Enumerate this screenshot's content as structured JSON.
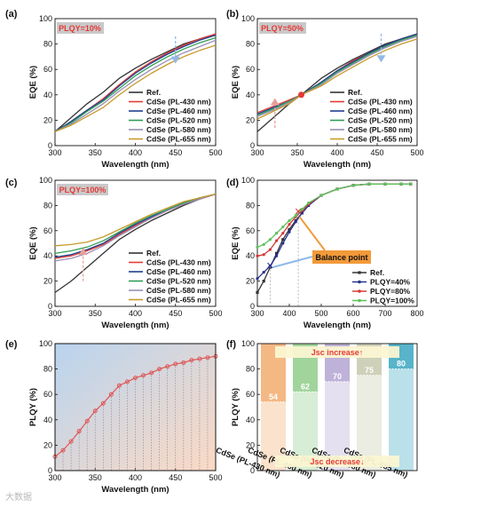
{
  "watermark": "大数据",
  "colors": {
    "ref": "#333333",
    "pl430": "#e53935",
    "pl460": "#1e3f8f",
    "pl520": "#2e9e55",
    "pl580": "#9a8fb5",
    "pl655": "#c79a2a",
    "plqy40": "#27318f",
    "plqy80": "#d43a3a",
    "plqy100": "#5cc25c",
    "tag_bg": "#c9c9c9",
    "tag_text": "#e53935"
  },
  "chart_data": [
    {
      "panel": "(a)",
      "type": "line",
      "tag": "PLQY=10%",
      "xlabel": "Wavelength (nm)",
      "ylabel": "EQE (%)",
      "xlim": [
        300,
        500
      ],
      "ylim": [
        0,
        100
      ],
      "xticks": [
        300,
        350,
        400,
        450,
        500
      ],
      "yticks": [
        0,
        20,
        40,
        60,
        80,
        100
      ],
      "legend_position": "bottom-right",
      "series": [
        {
          "name": "Ref.",
          "color": "ref",
          "x": [
            300,
            320,
            340,
            360,
            380,
            400,
            420,
            440,
            460,
            480,
            500
          ],
          "y": [
            11,
            22,
            33,
            42,
            53,
            61,
            68,
            74,
            80,
            84,
            88
          ]
        },
        {
          "name": "CdSe (PL-430 nm)",
          "color": "pl430",
          "x": [
            300,
            320,
            340,
            360,
            380,
            400,
            420,
            440,
            460,
            480,
            500
          ],
          "y": [
            11,
            19,
            28,
            37,
            48,
            58,
            66,
            73,
            79,
            84,
            88
          ]
        },
        {
          "name": "CdSe (PL-460 nm)",
          "color": "pl460",
          "x": [
            300,
            320,
            340,
            360,
            380,
            400,
            420,
            440,
            460,
            480,
            500
          ],
          "y": [
            11,
            19,
            28,
            36,
            47,
            57,
            65,
            72,
            78,
            83,
            87
          ]
        },
        {
          "name": "CdSe (PL-520 nm)",
          "color": "pl520",
          "x": [
            300,
            320,
            340,
            360,
            380,
            400,
            420,
            440,
            460,
            480,
            500
          ],
          "y": [
            11,
            18,
            27,
            35,
            45,
            55,
            63,
            70,
            76,
            81,
            85
          ]
        },
        {
          "name": "CdSe (PL-580 nm)",
          "color": "pl580",
          "x": [
            300,
            320,
            340,
            360,
            380,
            400,
            420,
            440,
            460,
            480,
            500
          ],
          "y": [
            11,
            17,
            25,
            33,
            43,
            52,
            60,
            67,
            73,
            78,
            83
          ]
        },
        {
          "name": "CdSe (PL-655 nm)",
          "color": "pl655",
          "x": [
            300,
            320,
            340,
            360,
            380,
            400,
            420,
            440,
            460,
            480,
            500
          ],
          "y": [
            11,
            16,
            23,
            30,
            40,
            49,
            57,
            64,
            70,
            75,
            79
          ]
        }
      ],
      "arrows": [
        {
          "x": 450,
          "y1": 86,
          "y2": 66,
          "color": "#8fb9e8"
        }
      ]
    },
    {
      "panel": "(b)",
      "type": "line",
      "tag": "PLQY=50%",
      "xlabel": "Wavelength (nm)",
      "ylabel": "EQE (%)",
      "xlim": [
        300,
        500
      ],
      "ylim": [
        0,
        100
      ],
      "xticks": [
        300,
        350,
        400,
        450,
        500
      ],
      "yticks": [
        0,
        20,
        40,
        60,
        80,
        100
      ],
      "legend_position": "bottom-right",
      "series": [
        {
          "name": "Ref.",
          "color": "ref",
          "x": [
            300,
            320,
            340,
            355,
            380,
            400,
            420,
            440,
            460,
            480,
            500
          ],
          "y": [
            11,
            22,
            33,
            40,
            53,
            61,
            68,
            74,
            80,
            84,
            88
          ]
        },
        {
          "name": "CdSe (PL-430 nm)",
          "color": "pl430",
          "x": [
            300,
            320,
            340,
            355,
            380,
            400,
            420,
            440,
            460,
            480,
            500
          ],
          "y": [
            26,
            31,
            36,
            40,
            50,
            59,
            67,
            73,
            79,
            84,
            88
          ]
        },
        {
          "name": "CdSe (PL-460 nm)",
          "color": "pl460",
          "x": [
            300,
            320,
            340,
            355,
            380,
            400,
            420,
            440,
            460,
            480,
            500
          ],
          "y": [
            25,
            30,
            35,
            40,
            50,
            59,
            66,
            73,
            79,
            84,
            88
          ]
        },
        {
          "name": "CdSe (PL-520 nm)",
          "color": "pl520",
          "x": [
            300,
            320,
            340,
            355,
            380,
            400,
            420,
            440,
            460,
            480,
            500
          ],
          "y": [
            24,
            29,
            35,
            40,
            49,
            58,
            65,
            72,
            78,
            83,
            87
          ]
        },
        {
          "name": "CdSe (PL-580 nm)",
          "color": "pl580",
          "x": [
            300,
            320,
            340,
            355,
            380,
            400,
            420,
            440,
            460,
            480,
            500
          ],
          "y": [
            23,
            28,
            34,
            40,
            48,
            57,
            64,
            71,
            77,
            82,
            86
          ]
        },
        {
          "name": "CdSe (PL-655 nm)",
          "color": "pl655",
          "x": [
            300,
            320,
            340,
            355,
            380,
            400,
            420,
            440,
            460,
            480,
            500
          ],
          "y": [
            21,
            27,
            33,
            40,
            47,
            55,
            62,
            69,
            75,
            80,
            84
          ]
        }
      ],
      "marker": {
        "x": 355,
        "y": 40,
        "color": "#e53935"
      },
      "arrows": [
        {
          "x": 322,
          "y1": 14,
          "y2": 36,
          "color": "#e8a09a"
        },
        {
          "x": 455,
          "y1": 88,
          "y2": 67,
          "color": "#8fb9e8"
        }
      ]
    },
    {
      "panel": "(c)",
      "type": "line",
      "tag": "PLQY=100%",
      "xlabel": "Wavelength (nm)",
      "ylabel": "EQE (%)",
      "xlim": [
        300,
        500
      ],
      "ylim": [
        0,
        100
      ],
      "xticks": [
        300,
        350,
        400,
        450,
        500
      ],
      "yticks": [
        0,
        20,
        40,
        60,
        80,
        100
      ],
      "legend_position": "bottom-right",
      "series": [
        {
          "name": "Ref.",
          "color": "ref",
          "x": [
            300,
            320,
            340,
            360,
            380,
            400,
            420,
            440,
            460,
            480,
            500
          ],
          "y": [
            11,
            20,
            31,
            42,
            53,
            61,
            68,
            74,
            80,
            85,
            89
          ]
        },
        {
          "name": "CdSe (PL-430 nm)",
          "color": "pl430",
          "x": [
            300,
            320,
            340,
            360,
            380,
            400,
            420,
            440,
            460,
            480,
            500
          ],
          "y": [
            38,
            40,
            44,
            49,
            57,
            64,
            70,
            76,
            81,
            85,
            89
          ]
        },
        {
          "name": "CdSe (PL-460 nm)",
          "color": "pl460",
          "x": [
            300,
            320,
            340,
            360,
            380,
            400,
            420,
            440,
            460,
            480,
            500
          ],
          "y": [
            39,
            41,
            45,
            50,
            58,
            65,
            71,
            77,
            82,
            86,
            89
          ]
        },
        {
          "name": "CdSe (PL-520 nm)",
          "color": "pl520",
          "x": [
            300,
            320,
            340,
            360,
            380,
            400,
            420,
            440,
            460,
            480,
            500
          ],
          "y": [
            42,
            44,
            47,
            52,
            59,
            66,
            72,
            77,
            82,
            86,
            89
          ]
        },
        {
          "name": "CdSe (PL-580 nm)",
          "color": "pl580",
          "x": [
            300,
            320,
            340,
            360,
            380,
            400,
            420,
            440,
            460,
            480,
            500
          ],
          "y": [
            36,
            38,
            42,
            48,
            56,
            63,
            70,
            76,
            81,
            85,
            89
          ]
        },
        {
          "name": "CdSe (PL-655 nm)",
          "color": "pl655",
          "x": [
            300,
            320,
            340,
            360,
            380,
            400,
            420,
            440,
            460,
            480,
            500
          ],
          "y": [
            48,
            49,
            51,
            55,
            61,
            67,
            73,
            78,
            83,
            86,
            89
          ]
        }
      ],
      "arrows": [
        {
          "x": 335,
          "y1": 20,
          "y2": 45,
          "color": "#e8a09a"
        }
      ]
    },
    {
      "panel": "(d)",
      "type": "line",
      "xlabel": "Wavelength (nm)",
      "ylabel": "EQE (%)",
      "xlim": [
        300,
        800
      ],
      "ylim": [
        0,
        100
      ],
      "xticks": [
        300,
        400,
        500,
        600,
        700,
        800
      ],
      "yticks": [
        0,
        20,
        40,
        60,
        80,
        100
      ],
      "legend_position": "bottom-right",
      "annotation": "Balance point",
      "series": [
        {
          "name": "Ref.",
          "color": "ref",
          "marker": "square",
          "x": [
            300,
            320,
            340,
            360,
            380,
            400,
            420,
            440,
            460,
            500,
            550,
            600,
            650,
            700,
            750,
            780
          ],
          "y": [
            11,
            20,
            31,
            42,
            53,
            61,
            68,
            74,
            80,
            88,
            93,
            96,
            97,
            97,
            97,
            97
          ]
        },
        {
          "name": "PLQY=40%",
          "color": "plqy40",
          "marker": "circle",
          "x": [
            300,
            320,
            340,
            360,
            380,
            400,
            420,
            440,
            460,
            500,
            550,
            600,
            650,
            700,
            750,
            780
          ],
          "y": [
            22,
            27,
            32,
            40,
            50,
            59,
            67,
            74,
            80,
            88,
            93,
            96,
            97,
            97,
            97,
            97
          ]
        },
        {
          "name": "PLQY=80%",
          "color": "plqy80",
          "marker": "circle",
          "x": [
            300,
            320,
            340,
            360,
            380,
            400,
            420,
            440,
            460,
            500,
            550,
            600,
            650,
            700,
            750,
            780
          ],
          "y": [
            40,
            41,
            45,
            52,
            58,
            65,
            71,
            76,
            81,
            88,
            93,
            96,
            97,
            97,
            97,
            97
          ]
        },
        {
          "name": "PLQY=100%",
          "color": "plqy100",
          "marker": "circle",
          "x": [
            300,
            320,
            340,
            360,
            380,
            400,
            420,
            440,
            460,
            500,
            550,
            600,
            650,
            700,
            750,
            780
          ],
          "y": [
            47,
            49,
            53,
            58,
            63,
            68,
            72,
            77,
            82,
            88,
            93,
            96,
            97,
            97,
            97,
            97
          ]
        }
      ],
      "points": [
        {
          "x": 340,
          "y": 32,
          "color": "plqy40"
        },
        {
          "x": 428,
          "y": 75,
          "color": "plqy80"
        }
      ]
    },
    {
      "panel": "(e)",
      "type": "line",
      "xlabel": "Wavelength (nm)",
      "ylabel": "PLQY (%)",
      "xlim": [
        300,
        500
      ],
      "ylim": [
        0,
        100
      ],
      "xticks": [
        300,
        350,
        400,
        450,
        500
      ],
      "yticks": [
        0,
        20,
        40,
        60,
        80,
        100
      ],
      "series": [
        {
          "name": "",
          "color": "#e05555",
          "x": [
            300,
            310,
            320,
            330,
            340,
            350,
            360,
            370,
            380,
            390,
            400,
            410,
            420,
            430,
            440,
            450,
            460,
            470,
            480,
            490,
            500
          ],
          "y": [
            11,
            16,
            23,
            31,
            39,
            47,
            53,
            60,
            67,
            70,
            73,
            75,
            77,
            80,
            82,
            84,
            85,
            87,
            88,
            89,
            90
          ]
        }
      ]
    },
    {
      "panel": "(f)",
      "type": "bar",
      "ylabel": "PLQY (%)",
      "ylim": [
        0,
        100
      ],
      "yticks": [
        0,
        20,
        40,
        60,
        80,
        100
      ],
      "categories": [
        "CdSe (PL-430 nm)",
        "CdSe (PL-460 nm)",
        "CdSe (PL-520 nm)",
        "CdSe (PL-580 nm)",
        "CdSe (PL-655 nm)"
      ],
      "values": [
        54,
        62,
        70,
        75,
        80
      ],
      "bar_colors": [
        "#f2ab6e",
        "#8fcc8a",
        "#b3a5d2",
        "#c6c8ad",
        "#3aa7c1"
      ],
      "annotations": [
        "Jsc increase↑",
        "Jsc decrease↓"
      ]
    }
  ]
}
